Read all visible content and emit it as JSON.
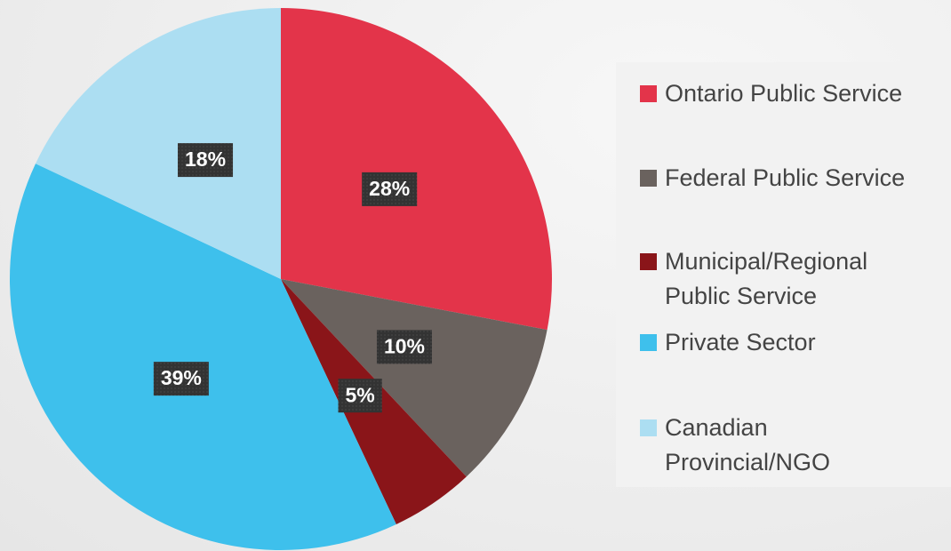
{
  "chart_data": {
    "type": "pie",
    "categories": [
      "Ontario Public Service",
      "Federal Public Service",
      "Municipal/Regional Public Service",
      "Private Sector",
      "Canadian Provincial/NGO"
    ],
    "values": [
      28,
      10,
      5,
      39,
      18
    ],
    "value_labels": [
      "28%",
      "10%",
      "5%",
      "39%",
      "18%"
    ],
    "colors": [
      "#e3344a",
      "#6a625e",
      "#8a1519",
      "#3ec0ec",
      "#acdef2"
    ],
    "legend": "right"
  }
}
